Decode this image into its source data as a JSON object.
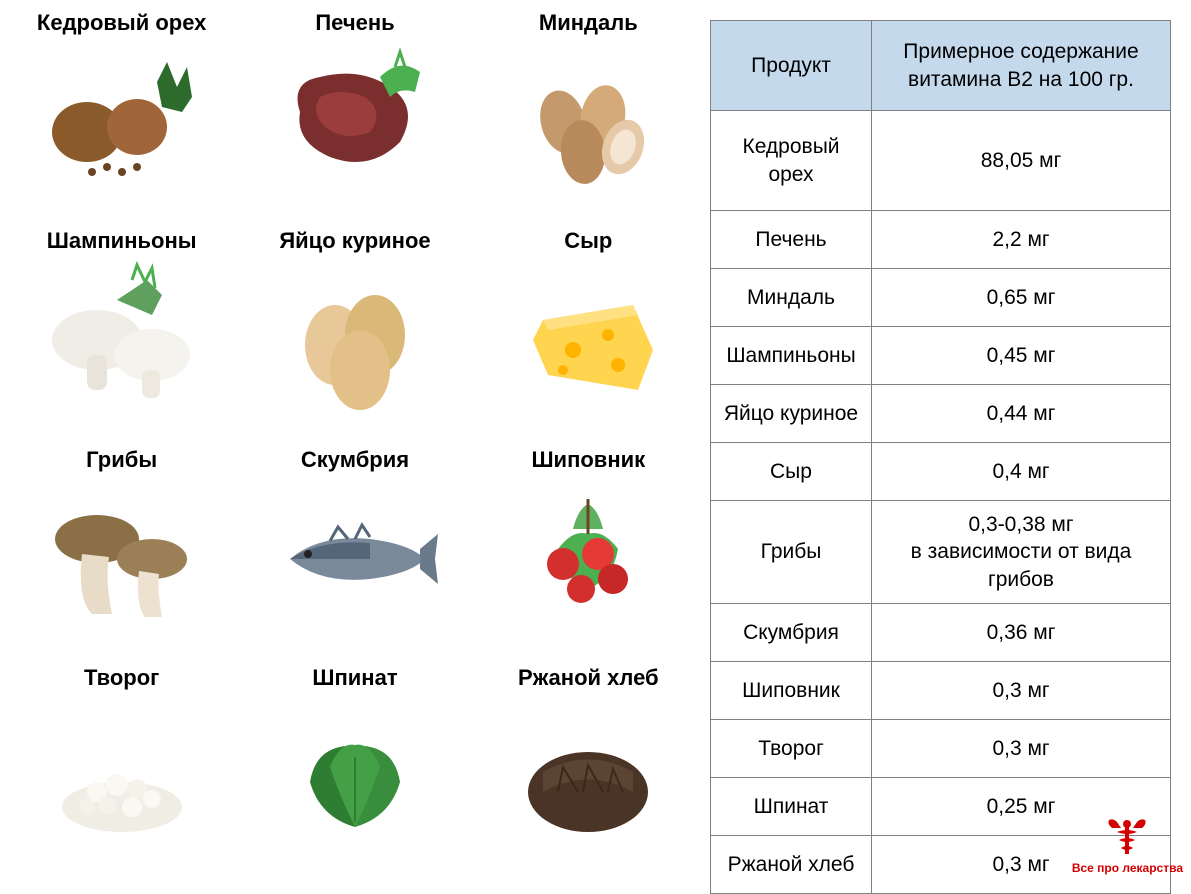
{
  "foods": [
    {
      "label": "Кедровый орех",
      "kind": "pine-nut"
    },
    {
      "label": "Печень",
      "kind": "liver"
    },
    {
      "label": "Миндаль",
      "kind": "almond"
    },
    {
      "label": "Шампиньоны",
      "kind": "champignon"
    },
    {
      "label": "Яйцо куриное",
      "kind": "egg"
    },
    {
      "label": "Сыр",
      "kind": "cheese"
    },
    {
      "label": "Грибы",
      "kind": "mushroom"
    },
    {
      "label": "Скумбрия",
      "kind": "mackerel"
    },
    {
      "label": "Шиповник",
      "kind": "rosehip"
    },
    {
      "label": "Творог",
      "kind": "cottage-cheese"
    },
    {
      "label": "Шпинат",
      "kind": "spinach"
    },
    {
      "label": "Ржаной хлеб",
      "kind": "rye-bread"
    }
  ],
  "table": {
    "headers": {
      "product": "Продукт",
      "value": "Примерное содержание\nвитамина В2 на 100 гр."
    },
    "rows": [
      {
        "product": "Кедровый\nорех",
        "value": "88,05 мг",
        "tall": true
      },
      {
        "product": "Печень",
        "value": "2,2 мг"
      },
      {
        "product": "Миндаль",
        "value": "0,65 мг"
      },
      {
        "product": "Шампиньоны",
        "value": "0,45 мг"
      },
      {
        "product": "Яйцо куриное",
        "value": "0,44 мг"
      },
      {
        "product": "Сыр",
        "value": "0,4 мг"
      },
      {
        "product": "Грибы",
        "value": "0,3-0,38 мг\nв зависимости от вида\nгрибов",
        "tall": true
      },
      {
        "product": "Скумбрия",
        "value": "0,36 мг"
      },
      {
        "product": "Шиповник",
        "value": "0,3 мг"
      },
      {
        "product": "Творог",
        "value": "0,3 мг"
      },
      {
        "product": "Шпинат",
        "value": "0,25 мг"
      },
      {
        "product": "Ржаной хлеб",
        "value": "0,3 мг"
      }
    ],
    "header_bg": "#c5d9ed",
    "border_color": "#808080",
    "font_size": 21
  },
  "watermark": {
    "text": "Все про лекарства",
    "color": "#d40000"
  },
  "colors": {
    "background": "#ffffff",
    "text": "#000000",
    "label_font_size": 22
  }
}
